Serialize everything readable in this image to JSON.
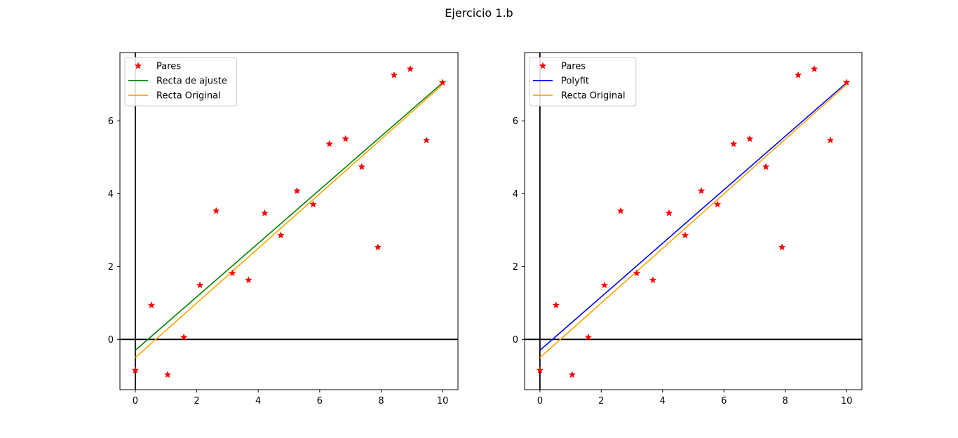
{
  "suptitle": "Ejercicio 1.b",
  "colors": {
    "points": "#ff0000",
    "fit_green": "#008000",
    "polyfit_blue": "#0000ff",
    "original_orange": "#ffa500",
    "axes_lines": "#000000"
  },
  "chart_data": [
    {
      "type": "scatter",
      "title": "",
      "xlabel": "",
      "ylabel": "",
      "xlim": [
        -0.5,
        10.5
      ],
      "ylim": [
        -1.38,
        7.88
      ],
      "xticks": [
        0,
        2,
        4,
        6,
        8,
        10
      ],
      "yticks": [
        0,
        2,
        4,
        6
      ],
      "grid": false,
      "legend_position": "upper-left",
      "reference_lines": {
        "x": 0,
        "y": 0
      },
      "series": [
        {
          "name": "Pares",
          "kind": "points",
          "marker": "star",
          "color": "#ff0000",
          "x": [
            0,
            0.526,
            1.053,
            1.579,
            2.105,
            2.632,
            3.158,
            3.684,
            4.211,
            4.737,
            5.263,
            5.789,
            6.316,
            6.842,
            7.368,
            7.895,
            8.421,
            8.947,
            9.474,
            10
          ],
          "y": [
            -0.85,
            0.94,
            -0.97,
            0.06,
            1.49,
            3.53,
            1.82,
            1.63,
            3.47,
            2.86,
            4.08,
            3.71,
            5.37,
            5.51,
            4.74,
            2.53,
            7.26,
            7.43,
            5.47,
            7.06
          ]
        },
        {
          "name": "Recta de ajuste",
          "kind": "line",
          "color": "#008000",
          "x": [
            0,
            10
          ],
          "y": [
            -0.3,
            7.05
          ]
        },
        {
          "name": "Recta Original",
          "kind": "line",
          "color": "#ffa500",
          "x": [
            0,
            10
          ],
          "y": [
            -0.5,
            7.0
          ]
        }
      ]
    },
    {
      "type": "scatter",
      "title": "",
      "xlabel": "",
      "ylabel": "",
      "xlim": [
        -0.5,
        10.5
      ],
      "ylim": [
        -1.38,
        7.88
      ],
      "xticks": [
        0,
        2,
        4,
        6,
        8,
        10
      ],
      "yticks": [
        0,
        2,
        4,
        6
      ],
      "grid": false,
      "legend_position": "upper-left",
      "reference_lines": {
        "x": 0,
        "y": 0
      },
      "series": [
        {
          "name": "Pares",
          "kind": "points",
          "marker": "star",
          "color": "#ff0000",
          "x": [
            0,
            0.526,
            1.053,
            1.579,
            2.105,
            2.632,
            3.158,
            3.684,
            4.211,
            4.737,
            5.263,
            5.789,
            6.316,
            6.842,
            7.368,
            7.895,
            8.421,
            8.947,
            9.474,
            10
          ],
          "y": [
            -0.85,
            0.94,
            -0.97,
            0.06,
            1.49,
            3.53,
            1.82,
            1.63,
            3.47,
            2.86,
            4.08,
            3.71,
            5.37,
            5.51,
            4.74,
            2.53,
            7.26,
            7.43,
            5.47,
            7.06
          ]
        },
        {
          "name": "Polyfit",
          "kind": "line",
          "color": "#0000ff",
          "x": [
            0,
            10
          ],
          "y": [
            -0.3,
            7.05
          ]
        },
        {
          "name": "Recta Original",
          "kind": "line",
          "color": "#ffa500",
          "x": [
            0,
            10
          ],
          "y": [
            -0.5,
            7.0
          ]
        }
      ]
    }
  ]
}
